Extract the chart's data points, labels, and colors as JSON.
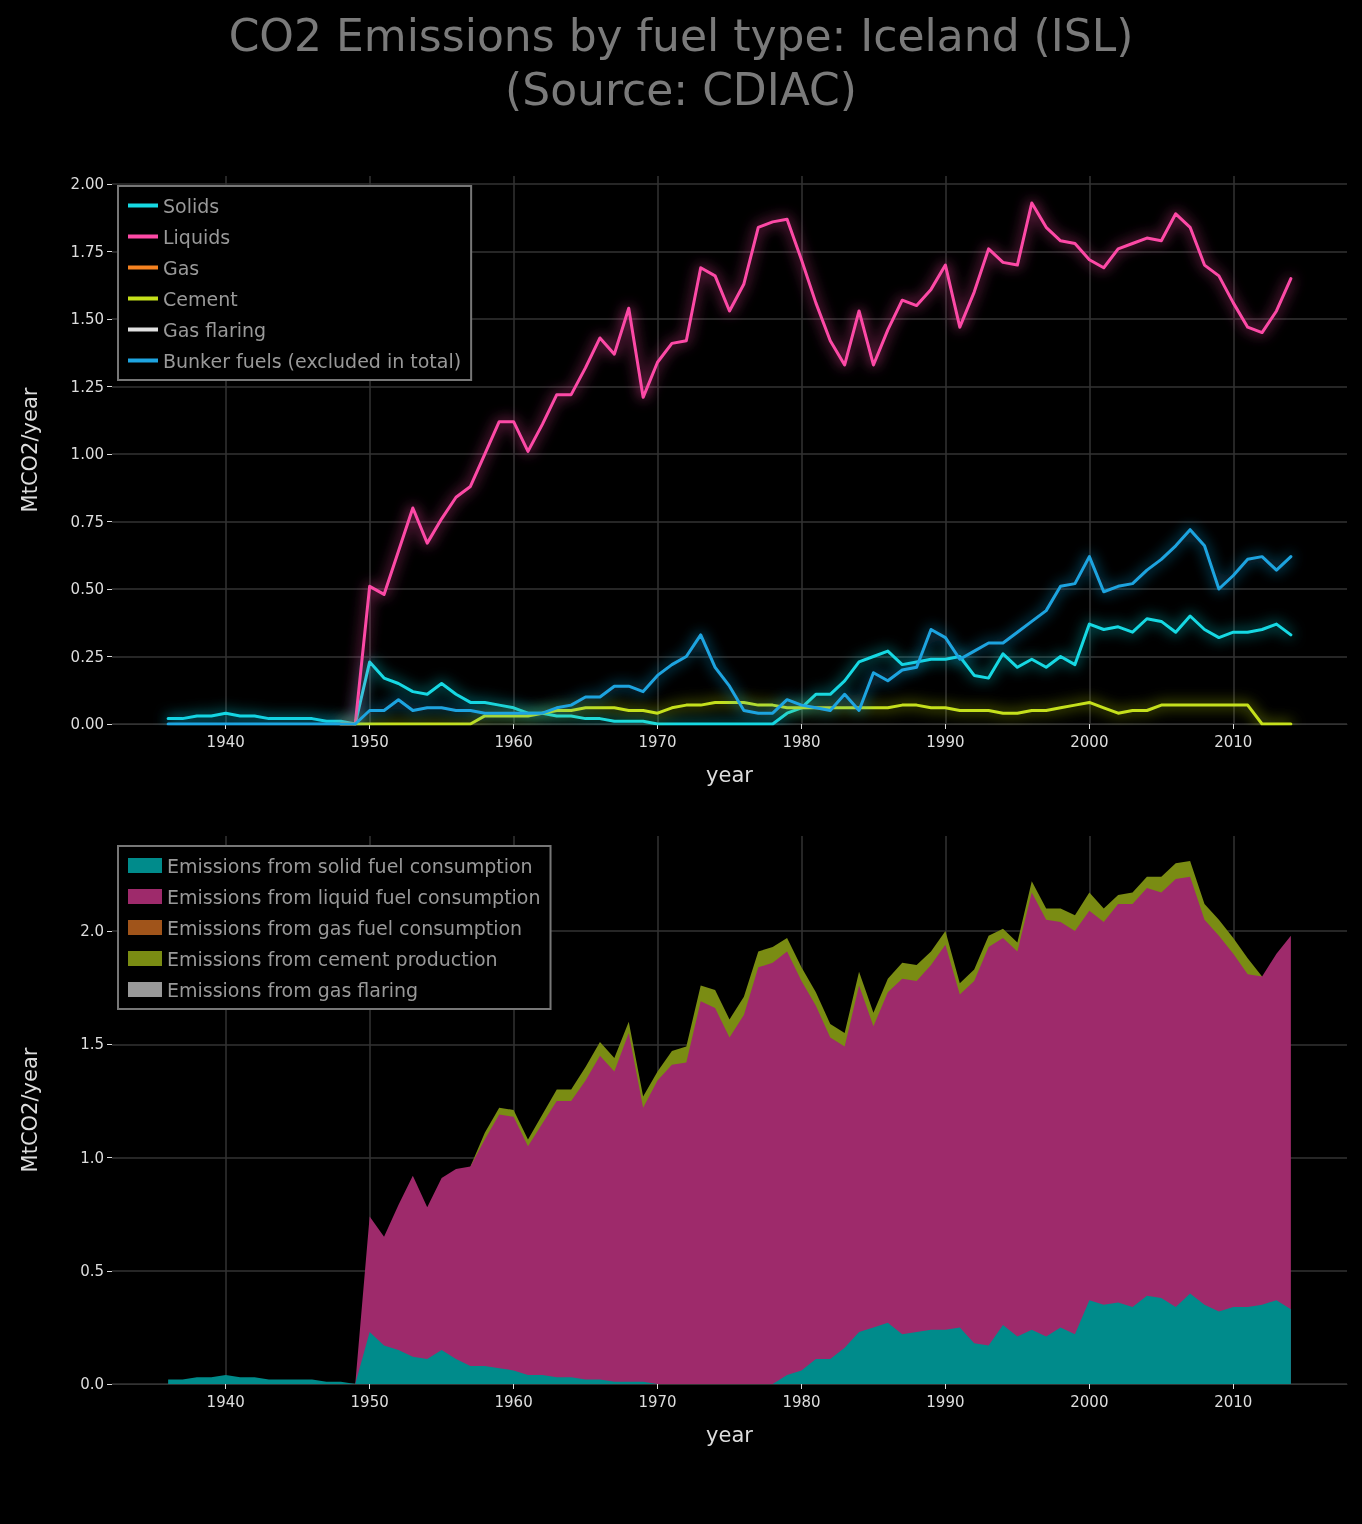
{
  "chart_data": [
    {
      "type": "line",
      "title": "CO2 Emissions by fuel type: Iceland (ISL)",
      "subtitle": "(Source: CDIAC)",
      "xlabel": "year",
      "ylabel": "MtCO2/year",
      "x": [
        1936,
        1937,
        1938,
        1939,
        1940,
        1941,
        1942,
        1943,
        1944,
        1945,
        1946,
        1947,
        1948,
        1949,
        1950,
        1951,
        1952,
        1953,
        1954,
        1955,
        1956,
        1957,
        1958,
        1959,
        1960,
        1961,
        1962,
        1963,
        1964,
        1965,
        1966,
        1967,
        1968,
        1969,
        1970,
        1971,
        1972,
        1973,
        1974,
        1975,
        1976,
        1977,
        1978,
        1979,
        1980,
        1981,
        1982,
        1983,
        1984,
        1985,
        1986,
        1987,
        1988,
        1989,
        1990,
        1991,
        1992,
        1993,
        1994,
        1995,
        1996,
        1997,
        1998,
        1999,
        2000,
        2001,
        2002,
        2003,
        2004,
        2005,
        2006,
        2007,
        2008,
        2009,
        2010,
        2011,
        2012,
        2013,
        2014
      ],
      "series": [
        {
          "name": "Solids",
          "color": "#16d9e3",
          "values": [
            0.02,
            0.02,
            0.03,
            0.03,
            0.04,
            0.03,
            0.03,
            0.02,
            0.02,
            0.02,
            0.02,
            0.01,
            0.01,
            0,
            0.23,
            0.17,
            0.15,
            0.12,
            0.11,
            0.15,
            0.11,
            0.08,
            0.08,
            0.07,
            0.06,
            0.04,
            0.04,
            0.03,
            0.03,
            0.02,
            0.02,
            0.01,
            0.01,
            0.01,
            0,
            0,
            0,
            0,
            0,
            0,
            0,
            0,
            0,
            0.04,
            0.06,
            0.11,
            0.11,
            0.16,
            0.23,
            0.25,
            0.27,
            0.22,
            0.23,
            0.24,
            0.24,
            0.25,
            0.18,
            0.17,
            0.26,
            0.21,
            0.24,
            0.21,
            0.25,
            0.22,
            0.37,
            0.35,
            0.36,
            0.34,
            0.39,
            0.38,
            0.34,
            0.4,
            0.35,
            0.32,
            0.34,
            0.34,
            0.35,
            0.37,
            0.33
          ]
        },
        {
          "name": "Liquids",
          "color": "#fd4aa6",
          "values": [
            null,
            null,
            null,
            null,
            null,
            null,
            null,
            null,
            null,
            null,
            null,
            null,
            0,
            0,
            0.51,
            0.48,
            0.64,
            0.8,
            0.67,
            0.76,
            0.84,
            0.88,
            1.0,
            1.12,
            1.12,
            1.01,
            1.11,
            1.22,
            1.22,
            1.32,
            1.43,
            1.37,
            1.54,
            1.21,
            1.34,
            1.41,
            1.42,
            1.69,
            1.66,
            1.53,
            1.63,
            1.84,
            1.86,
            1.87,
            1.72,
            1.56,
            1.42,
            1.33,
            1.53,
            1.33,
            1.46,
            1.57,
            1.55,
            1.61,
            1.7,
            1.47,
            1.6,
            1.76,
            1.71,
            1.7,
            1.93,
            1.84,
            1.79,
            1.78,
            1.72,
            1.69,
            1.76,
            1.78,
            1.8,
            1.79,
            1.89,
            1.84,
            1.7,
            1.66,
            1.56,
            1.47,
            1.45,
            1.53,
            1.65
          ]
        },
        {
          "name": "Gas",
          "color": "#f58220",
          "values": [
            null,
            null,
            null,
            null,
            null,
            null,
            null,
            null,
            null,
            null,
            null,
            null,
            null,
            null,
            null,
            null,
            null,
            null,
            null,
            null,
            null,
            null,
            null,
            null,
            null,
            null,
            null,
            null,
            null,
            null,
            null,
            null,
            null,
            null,
            null,
            null,
            null,
            null,
            null,
            null,
            null,
            null,
            null,
            null,
            null,
            null,
            null,
            null,
            null,
            null,
            null,
            null,
            null,
            null,
            null,
            null,
            null,
            null,
            null,
            null,
            null,
            null,
            null,
            null,
            null,
            null,
            null,
            null,
            null,
            null,
            null,
            null,
            null,
            null,
            null,
            null,
            null,
            null,
            null
          ]
        },
        {
          "name": "Cement",
          "color": "#c5e01a",
          "values": [
            null,
            null,
            null,
            null,
            null,
            null,
            null,
            null,
            null,
            null,
            null,
            null,
            0,
            0,
            0,
            0,
            0,
            0,
            0,
            0,
            0,
            0,
            0.03,
            0.03,
            0.03,
            0.03,
            0.04,
            0.05,
            0.05,
            0.06,
            0.06,
            0.06,
            0.05,
            0.05,
            0.04,
            0.06,
            0.07,
            0.07,
            0.08,
            0.08,
            0.08,
            0.07,
            0.07,
            0.06,
            0.06,
            0.06,
            0.06,
            0.06,
            0.06,
            0.06,
            0.06,
            0.07,
            0.07,
            0.06,
            0.06,
            0.05,
            0.05,
            0.05,
            0.04,
            0.04,
            0.05,
            0.05,
            0.06,
            0.07,
            0.08,
            0.06,
            0.04,
            0.05,
            0.05,
            0.07,
            0.07,
            0.07,
            0.07,
            0.07,
            0.07,
            0.07,
            0,
            0,
            0
          ]
        },
        {
          "name": "Gas flaring",
          "color": "#e0e0e0",
          "values": [
            null,
            null,
            null,
            null,
            null,
            null,
            null,
            null,
            null,
            null,
            null,
            null,
            null,
            null,
            null,
            null,
            null,
            null,
            null,
            null,
            null,
            null,
            null,
            null,
            null,
            null,
            null,
            null,
            null,
            null,
            null,
            null,
            null,
            null,
            null,
            null,
            null,
            null,
            null,
            null,
            null,
            null,
            null,
            null,
            null,
            null,
            null,
            null,
            null,
            null,
            null,
            null,
            null,
            null,
            null,
            null,
            null,
            null,
            null,
            null,
            null,
            null,
            null,
            null,
            null,
            null,
            null,
            null,
            null,
            null,
            null,
            null,
            null,
            null,
            null,
            null,
            null,
            null,
            null
          ]
        },
        {
          "name": "Bunker fuels (excluded in total)",
          "color": "#1ea4e0",
          "values": [
            0,
            0,
            0,
            0,
            0,
            0,
            0,
            0,
            0,
            0,
            0,
            0,
            0,
            0,
            0.05,
            0.05,
            0.09,
            0.05,
            0.06,
            0.06,
            0.05,
            0.05,
            0.04,
            0.04,
            0.04,
            0.04,
            0.04,
            0.06,
            0.07,
            0.1,
            0.1,
            0.14,
            0.14,
            0.12,
            0.18,
            0.22,
            0.25,
            0.33,
            0.21,
            0.14,
            0.05,
            0.04,
            0.04,
            0.09,
            0.07,
            0.06,
            0.05,
            0.11,
            0.05,
            0.19,
            0.16,
            0.2,
            0.21,
            0.35,
            0.32,
            0.24,
            0.27,
            0.3,
            0.3,
            0.34,
            0.38,
            0.42,
            0.51,
            0.52,
            0.62,
            0.49,
            0.51,
            0.52,
            0.57,
            0.61,
            0.66,
            0.72,
            0.66,
            0.5,
            0.55,
            0.61,
            0.62,
            0.57,
            0.62
          ]
        }
      ],
      "xlim": [
        1932.1,
        2017.9
      ],
      "xticks": [
        1940,
        1950,
        1960,
        1970,
        1980,
        1990,
        2000,
        2010
      ],
      "ylim": [
        0,
        2.03
      ],
      "yticks": [
        {
          "value": 0,
          "label": "0.00"
        },
        {
          "value": 0.25,
          "label": "0.25"
        },
        {
          "value": 0.5,
          "label": "0.50"
        },
        {
          "value": 0.75,
          "label": "0.75"
        },
        {
          "value": 1,
          "label": "1.00"
        },
        {
          "value": 1.25,
          "label": "1.25"
        },
        {
          "value": 1.5,
          "label": "1.50"
        },
        {
          "value": 1.75,
          "label": "1.75"
        },
        {
          "value": 2,
          "label": "2.00"
        }
      ],
      "grid": true,
      "legend": "top left",
      "marker": "none",
      "line_style": "solid"
    },
    {
      "type": "area",
      "stacked": true,
      "xlabel": "year",
      "ylabel": "MtCO2/year",
      "x": [
        1936,
        1937,
        1938,
        1939,
        1940,
        1941,
        1942,
        1943,
        1944,
        1945,
        1946,
        1947,
        1948,
        1949,
        1950,
        1951,
        1952,
        1953,
        1954,
        1955,
        1956,
        1957,
        1958,
        1959,
        1960,
        1961,
        1962,
        1963,
        1964,
        1965,
        1966,
        1967,
        1968,
        1969,
        1970,
        1971,
        1972,
        1973,
        1974,
        1975,
        1976,
        1977,
        1978,
        1979,
        1980,
        1981,
        1982,
        1983,
        1984,
        1985,
        1986,
        1987,
        1988,
        1989,
        1990,
        1991,
        1992,
        1993,
        1994,
        1995,
        1996,
        1997,
        1998,
        1999,
        2000,
        2001,
        2002,
        2003,
        2004,
        2005,
        2006,
        2007,
        2008,
        2009,
        2010,
        2011,
        2012,
        2013,
        2014
      ],
      "series": [
        {
          "name": "Emissions from solid fuel consumption",
          "color": "#008b8b",
          "values": [
            0.02,
            0.02,
            0.03,
            0.03,
            0.04,
            0.03,
            0.03,
            0.02,
            0.02,
            0.02,
            0.02,
            0.01,
            0.01,
            0,
            0.23,
            0.17,
            0.15,
            0.12,
            0.11,
            0.15,
            0.11,
            0.08,
            0.08,
            0.07,
            0.06,
            0.04,
            0.04,
            0.03,
            0.03,
            0.02,
            0.02,
            0.01,
            0.01,
            0.01,
            0,
            0,
            0,
            0,
            0,
            0,
            0,
            0,
            0,
            0.04,
            0.06,
            0.11,
            0.11,
            0.16,
            0.23,
            0.25,
            0.27,
            0.22,
            0.23,
            0.24,
            0.24,
            0.25,
            0.18,
            0.17,
            0.26,
            0.21,
            0.24,
            0.21,
            0.25,
            0.22,
            0.37,
            0.35,
            0.36,
            0.34,
            0.39,
            0.38,
            0.34,
            0.4,
            0.35,
            0.32,
            0.34,
            0.34,
            0.35,
            0.37,
            0.33
          ]
        },
        {
          "name": "Emissions from liquid fuel consumption",
          "color": "#9e2a6b",
          "values": [
            null,
            null,
            null,
            null,
            null,
            null,
            null,
            null,
            null,
            null,
            null,
            null,
            null,
            0,
            0.51,
            0.48,
            0.64,
            0.8,
            0.67,
            0.76,
            0.84,
            0.88,
            1.0,
            1.12,
            1.12,
            1.01,
            1.11,
            1.22,
            1.22,
            1.32,
            1.43,
            1.37,
            1.54,
            1.21,
            1.34,
            1.41,
            1.42,
            1.69,
            1.66,
            1.53,
            1.63,
            1.84,
            1.86,
            1.87,
            1.72,
            1.56,
            1.42,
            1.33,
            1.53,
            1.33,
            1.46,
            1.57,
            1.55,
            1.61,
            1.7,
            1.47,
            1.6,
            1.76,
            1.71,
            1.7,
            1.93,
            1.84,
            1.79,
            1.78,
            1.72,
            1.69,
            1.76,
            1.78,
            1.8,
            1.79,
            1.89,
            1.84,
            1.7,
            1.66,
            1.56,
            1.47,
            1.45,
            1.53,
            1.65
          ]
        },
        {
          "name": "Emissions from gas fuel consumption",
          "color": "#a0541a",
          "values": [
            null,
            null,
            null,
            null,
            null,
            null,
            null,
            null,
            null,
            null,
            null,
            null,
            null,
            null,
            null,
            null,
            null,
            null,
            null,
            null,
            null,
            null,
            null,
            null,
            null,
            null,
            null,
            null,
            null,
            null,
            null,
            null,
            null,
            null,
            null,
            null,
            null,
            null,
            null,
            null,
            null,
            null,
            null,
            null,
            null,
            null,
            null,
            null,
            null,
            null,
            null,
            null,
            null,
            null,
            null,
            null,
            null,
            null,
            null,
            null,
            null,
            null,
            null,
            null,
            null,
            null,
            null,
            null,
            null,
            null,
            null,
            null,
            null,
            null,
            null,
            null,
            null,
            null,
            null
          ]
        },
        {
          "name": "Emissions from cement production",
          "color": "#7a8c13",
          "values": [
            null,
            null,
            null,
            null,
            null,
            null,
            null,
            null,
            null,
            null,
            null,
            null,
            null,
            null,
            null,
            null,
            null,
            null,
            null,
            null,
            null,
            0,
            0.03,
            0.03,
            0.03,
            0.03,
            0.04,
            0.05,
            0.05,
            0.06,
            0.06,
            0.06,
            0.05,
            0.05,
            0.04,
            0.06,
            0.07,
            0.07,
            0.08,
            0.08,
            0.08,
            0.07,
            0.07,
            0.06,
            0.06,
            0.06,
            0.06,
            0.06,
            0.06,
            0.06,
            0.06,
            0.07,
            0.07,
            0.06,
            0.06,
            0.05,
            0.05,
            0.05,
            0.04,
            0.04,
            0.05,
            0.05,
            0.06,
            0.07,
            0.08,
            0.06,
            0.04,
            0.05,
            0.05,
            0.07,
            0.07,
            0.07,
            0.07,
            0.07,
            0.07,
            0.07,
            0,
            null,
            null
          ]
        },
        {
          "name": "Emissions from gas flaring",
          "color": "#999999",
          "values": [
            null,
            null,
            null,
            null,
            null,
            null,
            null,
            null,
            null,
            null,
            null,
            null,
            null,
            null,
            null,
            null,
            null,
            null,
            null,
            null,
            null,
            null,
            null,
            null,
            null,
            null,
            null,
            null,
            null,
            null,
            null,
            null,
            null,
            null,
            null,
            null,
            null,
            null,
            null,
            null,
            null,
            null,
            null,
            null,
            null,
            null,
            null,
            null,
            null,
            null,
            null,
            null,
            null,
            null,
            null,
            null,
            null,
            null,
            null,
            null,
            null,
            null,
            null,
            null,
            null,
            null,
            null,
            null,
            null,
            null,
            null,
            null,
            null,
            null,
            null,
            null,
            null,
            null,
            null
          ]
        }
      ],
      "xlim": [
        1932.1,
        2017.9
      ],
      "xticks": [
        1940,
        1950,
        1960,
        1970,
        1980,
        1990,
        2000,
        2010
      ],
      "ylim": [
        0,
        2.42
      ],
      "yticks": [
        {
          "value": 0,
          "label": "0.0"
        },
        {
          "value": 0.5,
          "label": "0.5"
        },
        {
          "value": 1,
          "label": "1.0"
        },
        {
          "value": 1.5,
          "label": "1.5"
        },
        {
          "value": 2,
          "label": "2.0"
        }
      ],
      "grid": true,
      "legend": "top left"
    }
  ]
}
